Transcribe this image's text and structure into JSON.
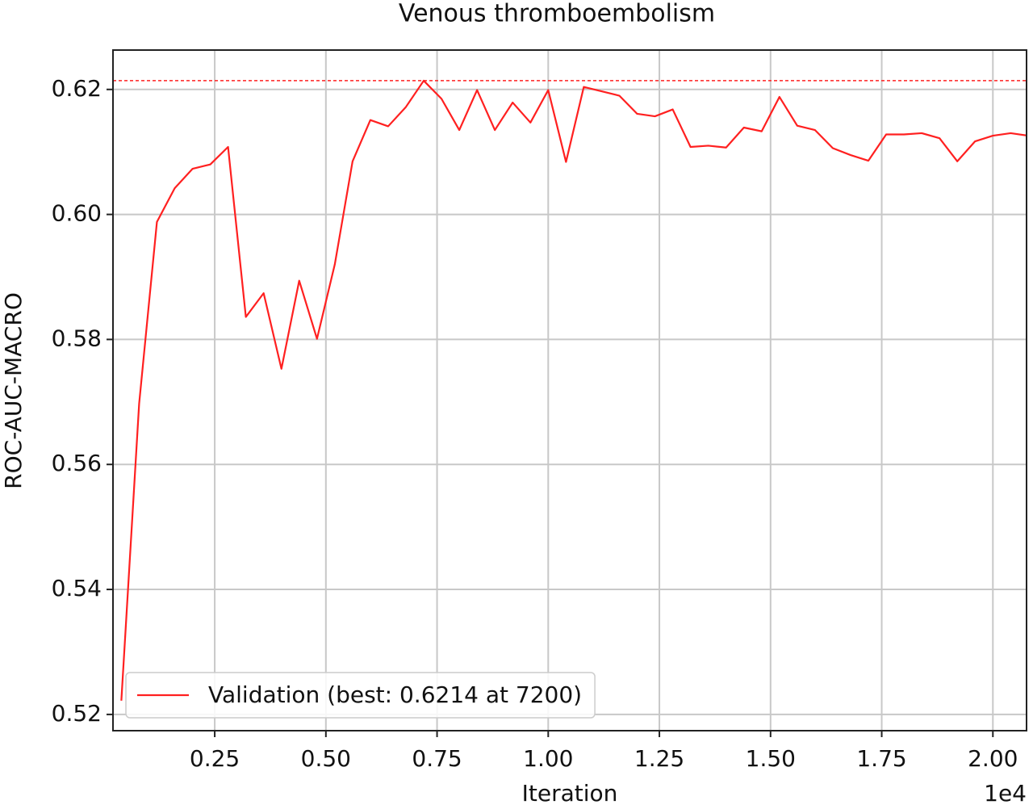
{
  "chart_data": {
    "type": "line",
    "title": "Venous thromboembolism",
    "xlabel": "Iteration",
    "ylabel": "ROC-AUC-MACRO",
    "x_offset_label": "1e4",
    "x": [
      400,
      800,
      1200,
      1600,
      2000,
      2400,
      2800,
      3200,
      3600,
      4000,
      4400,
      4800,
      5200,
      5600,
      6000,
      6400,
      6800,
      7200,
      7600,
      8000,
      8400,
      8800,
      9200,
      9600,
      10000,
      10400,
      10800,
      11200,
      11600,
      12000,
      12400,
      12800,
      13200,
      13600,
      14000,
      14400,
      14800,
      15200,
      15600,
      16000,
      16400,
      16800,
      17200,
      17600,
      18000,
      18400,
      18800,
      19200,
      19600,
      20000,
      20400,
      20800
    ],
    "series": [
      {
        "name": "Validation (best: 0.6214 at 7200)",
        "color": "#ff2020",
        "values": [
          0.5222,
          0.5697,
          0.5988,
          0.6042,
          0.6073,
          0.608,
          0.6108,
          0.5836,
          0.5874,
          0.5753,
          0.5894,
          0.5801,
          0.592,
          0.6085,
          0.6151,
          0.6141,
          0.6172,
          0.6214,
          0.6185,
          0.6135,
          0.6199,
          0.6135,
          0.6179,
          0.6147,
          0.6199,
          0.6084,
          0.6204,
          0.6197,
          0.619,
          0.6161,
          0.6157,
          0.6168,
          0.6108,
          0.611,
          0.6107,
          0.6139,
          0.6133,
          0.6188,
          0.6142,
          0.6135,
          0.6106,
          0.6095,
          0.6086,
          0.6128,
          0.6128,
          0.613,
          0.6122,
          0.6085,
          0.6117,
          0.6126,
          0.613,
          0.6126
        ]
      }
    ],
    "hline": {
      "value": 0.6214,
      "color": "#ff2020",
      "style": "dashed"
    },
    "xlim": [
      212,
      20757
    ],
    "ylim": [
      0.5174,
      0.6263
    ],
    "xticks": [
      {
        "value": 2500,
        "label": "0.25"
      },
      {
        "value": 5000,
        "label": "0.50"
      },
      {
        "value": 7500,
        "label": "0.75"
      },
      {
        "value": 10000,
        "label": "1.00"
      },
      {
        "value": 12500,
        "label": "1.25"
      },
      {
        "value": 15000,
        "label": "1.50"
      },
      {
        "value": 17500,
        "label": "1.75"
      },
      {
        "value": 20000,
        "label": "2.00"
      }
    ],
    "yticks": [
      0.52,
      0.54,
      0.56,
      0.58,
      {
        "value": 0.6,
        "label": "0.60"
      },
      0.62
    ],
    "grid": true,
    "legend": "lower left"
  }
}
